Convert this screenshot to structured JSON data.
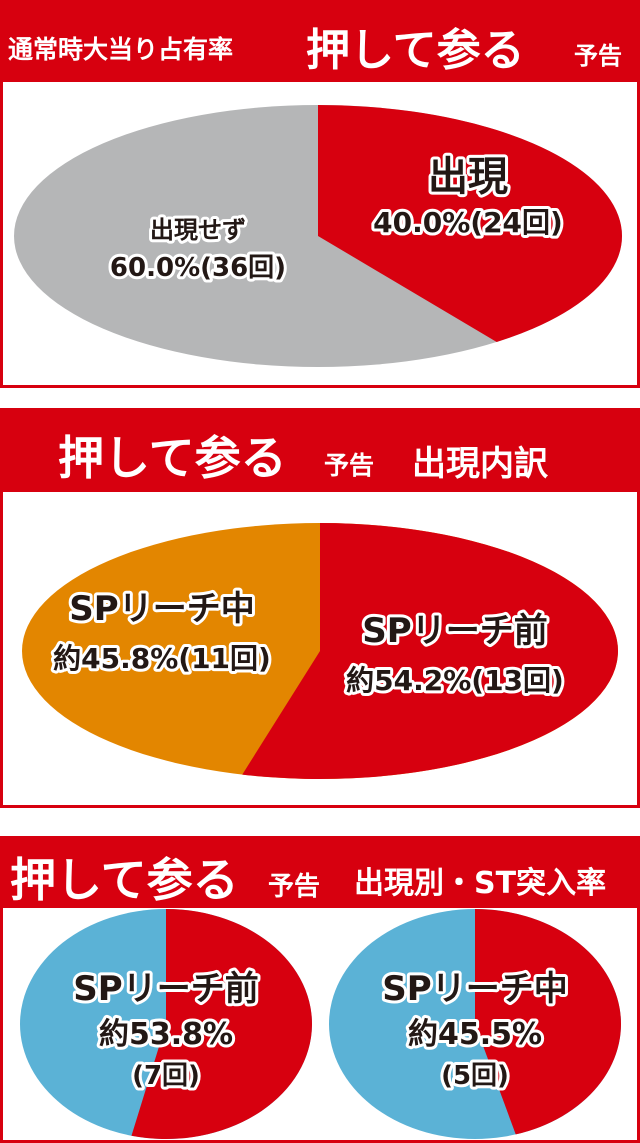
{
  "colors": {
    "header": "#d7000f",
    "red": "#d7000f",
    "gray": "#b5b6b7",
    "orange": "#e38600",
    "blue": "#5bb2d6"
  },
  "chart_data": [
    {
      "type": "pie",
      "title_parts": [
        "通常時大当り占有率",
        "押して参る",
        "予告"
      ],
      "slices": [
        {
          "label": "出現",
          "value": 40.0,
          "value_text": "40.0%(24回)",
          "count": 24,
          "color": "#d7000f"
        },
        {
          "label": "出現せず",
          "value": 60.0,
          "value_text": "60.0%(36回)",
          "count": 36,
          "color": "#b5b6b7"
        }
      ]
    },
    {
      "type": "pie",
      "title_parts": [
        "押して参る",
        "予告",
        "出現内訳"
      ],
      "slices": [
        {
          "label": "SPリーチ前",
          "value": 54.2,
          "value_text": "約54.2%(13回)",
          "count": 13,
          "color": "#d7000f"
        },
        {
          "label": "SPリーチ中",
          "value": 45.8,
          "value_text": "約45.8%(11回)",
          "count": 11,
          "color": "#e38600"
        }
      ]
    },
    {
      "type": "pie",
      "title_parts": [
        "押して参る",
        "予告",
        "出現別・ST突入率"
      ],
      "pies": [
        {
          "label": "SPリーチ前",
          "value": 53.8,
          "value_text": "約53.8%",
          "count_text": "(7回)",
          "color": "#d7000f",
          "rest_color": "#5bb2d6"
        },
        {
          "label": "SPリーチ中",
          "value": 45.5,
          "value_text": "約45.5%",
          "count_text": "(5回)",
          "color": "#d7000f",
          "rest_color": "#5bb2d6"
        }
      ]
    }
  ]
}
